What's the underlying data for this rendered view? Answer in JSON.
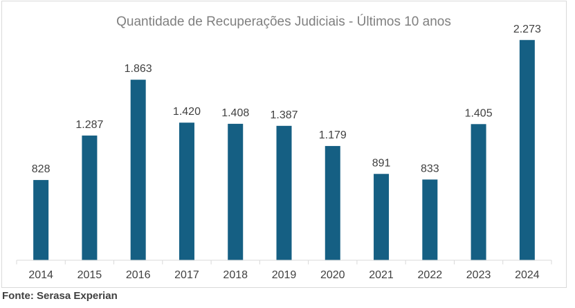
{
  "chart_data": {
    "type": "bar",
    "title": "Quantidade de Recuperações Judiciais - Últimos 10 anos",
    "xlabel": "",
    "ylabel": "",
    "categories": [
      "2014",
      "2015",
      "2016",
      "2017",
      "2018",
      "2019",
      "2020",
      "2021",
      "2022",
      "2023",
      "2024"
    ],
    "values": [
      828,
      1287,
      1863,
      1420,
      1408,
      1387,
      1179,
      891,
      833,
      1405,
      2273
    ],
    "value_labels": [
      "828",
      "1.287",
      "1.863",
      "1.420",
      "1.408",
      "1.387",
      "1.179",
      "891",
      "833",
      "1.405",
      "2.273"
    ],
    "ylim": [
      0,
      2400
    ],
    "grid": false,
    "legend": "none",
    "bar_color": "#155f83",
    "title_color": "#7f7f7f",
    "label_color": "#404040"
  },
  "source_text": "Fonte: Serasa Experian"
}
